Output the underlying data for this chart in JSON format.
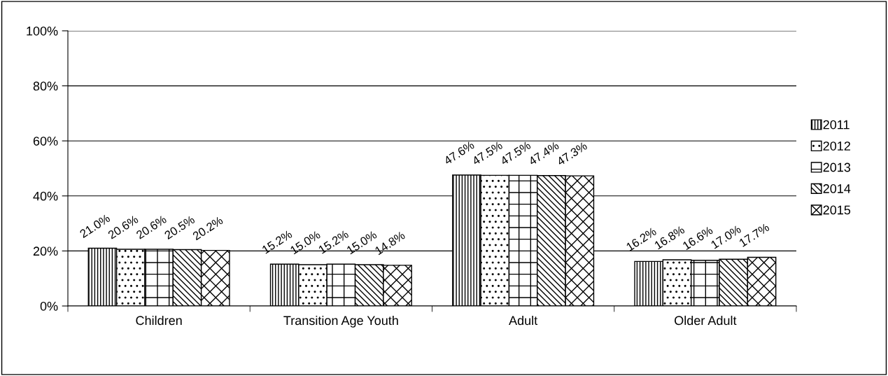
{
  "chart_data": {
    "type": "bar",
    "categories": [
      "Children",
      "Transition Age Youth",
      "Adult",
      "Older Adult"
    ],
    "series": [
      {
        "name": "2011",
        "color": "#000000",
        "values": [
          21.0,
          15.2,
          47.6,
          16.2
        ],
        "value_labels": [
          "21.0%",
          "15.2%",
          "47.6%",
          "16.2%"
        ]
      },
      {
        "name": "2012",
        "color": "#000000",
        "values": [
          20.6,
          15.0,
          47.5,
          16.8
        ],
        "value_labels": [
          "20.6%",
          "15.0%",
          "47.5%",
          "16.8%"
        ]
      },
      {
        "name": "2013",
        "color": "#000000",
        "values": [
          20.6,
          15.2,
          47.5,
          16.6
        ],
        "value_labels": [
          "20.6%",
          "15.2%",
          "47.5%",
          "16.6%"
        ]
      },
      {
        "name": "2014",
        "color": "#000000",
        "values": [
          20.5,
          15.0,
          47.4,
          17.0
        ],
        "value_labels": [
          "20.5%",
          "15.0%",
          "47.4%",
          "17.0%"
        ]
      },
      {
        "name": "2015",
        "color": "#000000",
        "values": [
          20.2,
          14.8,
          47.3,
          17.7
        ],
        "value_labels": [
          "20.2%",
          "14.8%",
          "47.3%",
          "17.7%"
        ]
      }
    ],
    "ylim": [
      0,
      100
    ],
    "yticks": [
      {
        "value": 0,
        "label": "0%"
      },
      {
        "value": 20,
        "label": "20%"
      },
      {
        "value": 40,
        "label": "40%"
      },
      {
        "value": 60,
        "label": "60%"
      },
      {
        "value": 80,
        "label": "80%"
      },
      {
        "value": 100,
        "label": "100%"
      }
    ],
    "grid": "y",
    "legend": "right"
  }
}
